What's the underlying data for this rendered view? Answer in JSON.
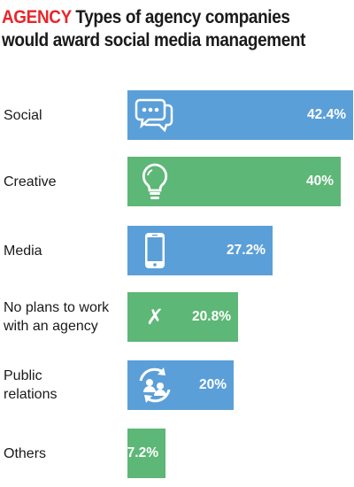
{
  "title": {
    "brand": "AGENCY",
    "line1": " Types of agency companies",
    "line2": "would award social media management"
  },
  "colors": {
    "brand": "#e8262a",
    "blue": "#5b9fd8",
    "green": "#5db776"
  },
  "chart_data": {
    "type": "bar",
    "orientation": "horizontal",
    "categories": [
      "Social",
      "Creative",
      "Media",
      "No plans to work with an agency",
      "Public relations",
      "Others"
    ],
    "category_lines": [
      [
        "Social"
      ],
      [
        "Creative"
      ],
      [
        "Media"
      ],
      [
        "No plans to work",
        "with an agency"
      ],
      [
        "Public",
        "relations"
      ],
      [
        "Others"
      ]
    ],
    "values": [
      42.4,
      40,
      27.2,
      20.8,
      20,
      7.2
    ],
    "labels": [
      "42.4%",
      "40%",
      "27.2%",
      "20.8%",
      "20%",
      "7.2%"
    ],
    "bar_colors": [
      "#5b9fd8",
      "#5db776",
      "#5b9fd8",
      "#5db776",
      "#5b9fd8",
      "#5db776"
    ],
    "icons": [
      "chat-bubbles-icon",
      "lightbulb-icon",
      "smartphone-icon",
      "x-mark-icon",
      "people-cycle-icon",
      ""
    ],
    "x_glyph": "✗"
  }
}
